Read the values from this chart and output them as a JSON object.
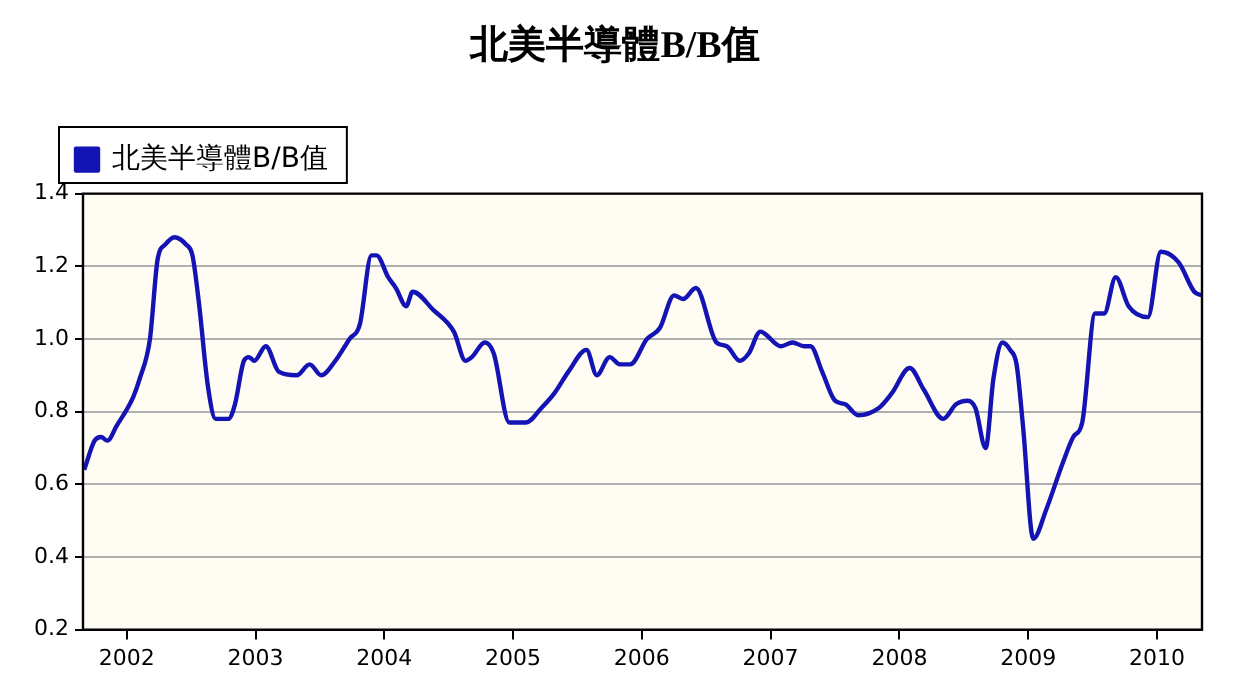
{
  "chart_data": {
    "type": "line",
    "title": "北美半導體B/B值",
    "legend": "top left",
    "grid": "y",
    "marker": "none",
    "line_style": "solid",
    "xlim": [
      2001.66,
      2010.35
    ],
    "xticks": [
      2002,
      2003,
      2004,
      2005,
      2006,
      2007,
      2008,
      2009,
      2010
    ],
    "ylim": [
      0.2,
      1.4
    ],
    "yticks": [
      0.2,
      0.4,
      0.6,
      0.8,
      {
        "value": 1,
        "label": "1.0"
      },
      1.2,
      1.4
    ],
    "series": [
      {
        "name": "北美半導體B/B值",
        "color": "#1414b4",
        "x": [
          2001.67,
          2001.75,
          2001.8,
          2001.85,
          2001.92,
          2002.05,
          2002.1,
          2002.18,
          2002.24,
          2002.3,
          2002.37,
          2002.46,
          2002.51,
          2002.56,
          2002.63,
          2002.69,
          2002.79,
          2002.84,
          2002.91,
          2002.95,
          2002.99,
          2003.08,
          2003.18,
          2003.32,
          2003.42,
          2003.51,
          2003.62,
          2003.73,
          2003.81,
          2003.9,
          2003.94,
          2004.03,
          2004.09,
          2004.17,
          2004.22,
          2004.38,
          2004.54,
          2004.63,
          2004.68,
          2004.78,
          2004.85,
          2004.97,
          2005.1,
          2005.22,
          2005.32,
          2005.43,
          2005.57,
          2005.65,
          2005.75,
          2005.83,
          2005.91,
          2006.04,
          2006.14,
          2006.25,
          2006.32,
          2006.42,
          2006.58,
          2006.66,
          2006.76,
          2006.83,
          2006.92,
          2007.08,
          2007.17,
          2007.26,
          2007.31,
          2007.4,
          2007.5,
          2007.58,
          2007.68,
          2007.84,
          2007.94,
          2008.08,
          2008.19,
          2008.34,
          2008.44,
          2008.53,
          2008.59,
          2008.67,
          2008.73,
          2008.8,
          2008.86,
          2008.91,
          2008.96,
          2009.04,
          2009.14,
          2009.27,
          2009.35,
          2009.42,
          2009.52,
          2009.59,
          2009.68,
          2009.78,
          2009.93,
          2010.03,
          2010.17,
          2010.29,
          2010.35
        ],
        "values": [
          0.64,
          0.72,
          0.73,
          0.72,
          0.76,
          0.84,
          0.89,
          1.0,
          1.22,
          1.26,
          1.28,
          1.26,
          1.23,
          1.1,
          0.87,
          0.78,
          0.78,
          0.82,
          0.94,
          0.95,
          0.94,
          0.98,
          0.91,
          0.9,
          0.93,
          0.9,
          0.94,
          1.0,
          1.04,
          1.23,
          1.23,
          1.17,
          1.14,
          1.09,
          1.13,
          1.08,
          1.02,
          0.94,
          0.95,
          0.99,
          0.96,
          0.77,
          0.77,
          0.81,
          0.85,
          0.91,
          0.97,
          0.9,
          0.95,
          0.93,
          0.93,
          1.0,
          1.03,
          1.12,
          1.11,
          1.14,
          0.99,
          0.98,
          0.94,
          0.96,
          1.02,
          0.98,
          0.99,
          0.98,
          0.98,
          0.91,
          0.83,
          0.82,
          0.79,
          0.81,
          0.85,
          0.92,
          0.86,
          0.78,
          0.82,
          0.83,
          0.81,
          0.7,
          0.89,
          0.99,
          0.97,
          0.93,
          0.76,
          0.45,
          0.53,
          0.66,
          0.73,
          0.77,
          1.07,
          1.07,
          1.17,
          1.09,
          1.06,
          1.24,
          1.21,
          1.13,
          1.12
        ]
      }
    ]
  }
}
